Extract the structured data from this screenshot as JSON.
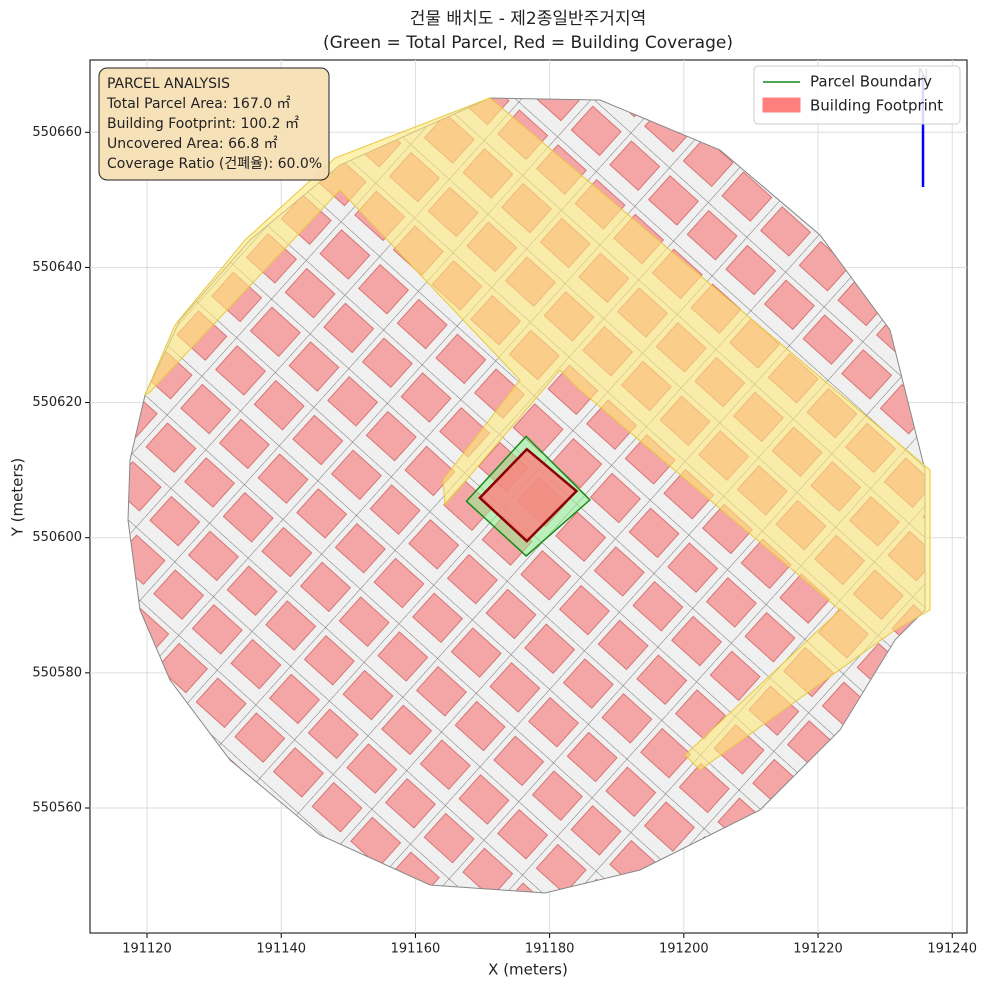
{
  "chart_data": {
    "type": "map",
    "title": "건물 배치도 - 제2종일반주거지역",
    "subtitle": "(Green = Total Parcel, Red = Building Coverage)",
    "xlabel": "X (meters)",
    "ylabel": "Y (meters)",
    "xlim": [
      191111.5,
      191242.2
    ],
    "ylim": [
      550541.5,
      550670.7
    ],
    "xticks": [
      191120,
      191140,
      191160,
      191180,
      191200,
      191220,
      191240
    ],
    "yticks": [
      550560,
      550580,
      550600,
      550620,
      550640,
      550660
    ],
    "grid": true,
    "parcel": {
      "name": "Parcel Boundary",
      "color": "#1a8a1a",
      "fill": "#90ee90",
      "x": [
        191176.5,
        191186.0,
        191176.5,
        191167.6
      ],
      "y": [
        550615.0,
        550605.6,
        550597.3,
        550605.4
      ]
    },
    "building": {
      "name": "Building Footprint",
      "color": "#8b0000",
      "fill": "#ff7f7f",
      "x": [
        191176.6,
        191184.0,
        191176.6,
        191169.6
      ],
      "y": [
        550613.1,
        550606.9,
        550599.5,
        550605.9
      ]
    },
    "legend": "upper right",
    "annotation": [
      "PARCEL ANALYSIS",
      "Total Parcel Area: 167.0 ㎡",
      "Building Footprint: 100.2 ㎡",
      "Uncovered Area: 66.8 ㎡",
      "Coverage Ratio (건폐율): 60.0%"
    ],
    "north_label": "N"
  }
}
